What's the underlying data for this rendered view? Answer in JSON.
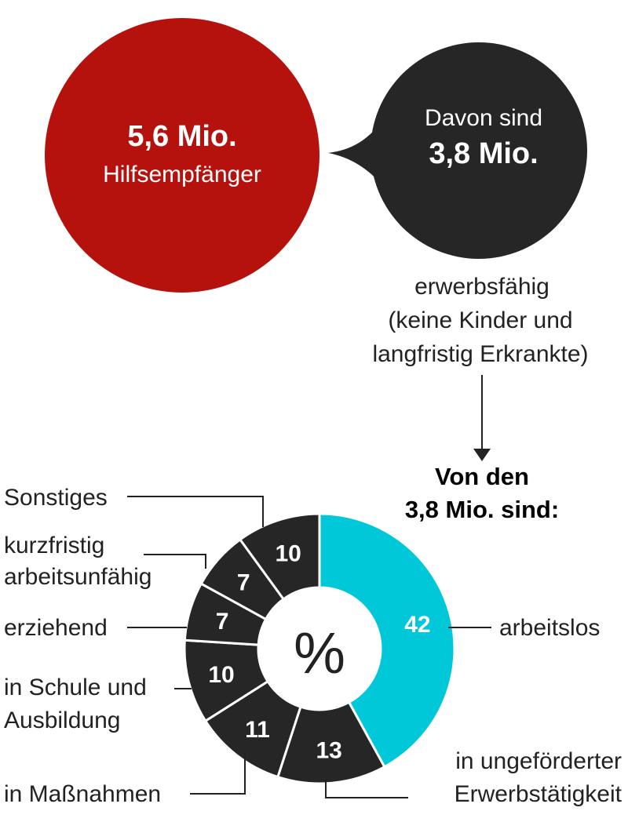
{
  "top": {
    "total_value": "5,6 Mio.",
    "total_label": "Hilfsempfänger",
    "sub_intro": "Davon sind",
    "sub_value": "3,8 Mio.",
    "sub_desc_lines": [
      "erwerbsfähig",
      "(keine Kinder und",
      "langfristig Erkrankte)"
    ]
  },
  "pie_heading_lines": [
    "Von den",
    "3,8 Mio. sind:"
  ],
  "center_symbol": "%",
  "colors": {
    "red": "#b5120d",
    "dark": "#262626",
    "cyan": "#00c8d8",
    "white": "#ffffff"
  },
  "chart_data": {
    "type": "pie",
    "unit": "%",
    "categories": [
      "arbeitslos",
      "in ungeförderter Erwerbstätigkeit",
      "in Maßnahmen",
      "in Schule und Ausbildung",
      "erziehend",
      "kurzfristig arbeitsunfähig",
      "Sonstiges"
    ],
    "values": [
      42,
      13,
      11,
      10,
      7,
      7,
      10
    ],
    "label_lines": [
      [
        "arbeitslos"
      ],
      [
        "in ungeförderter",
        "Erwerbstätigkeit"
      ],
      [
        "in Maßnahmen"
      ],
      [
        "in Schule und",
        "Ausbildung"
      ],
      [
        "erziehend"
      ],
      [
        "kurzfristig",
        "arbeitsunfähig"
      ],
      [
        "Sonstiges"
      ]
    ]
  }
}
